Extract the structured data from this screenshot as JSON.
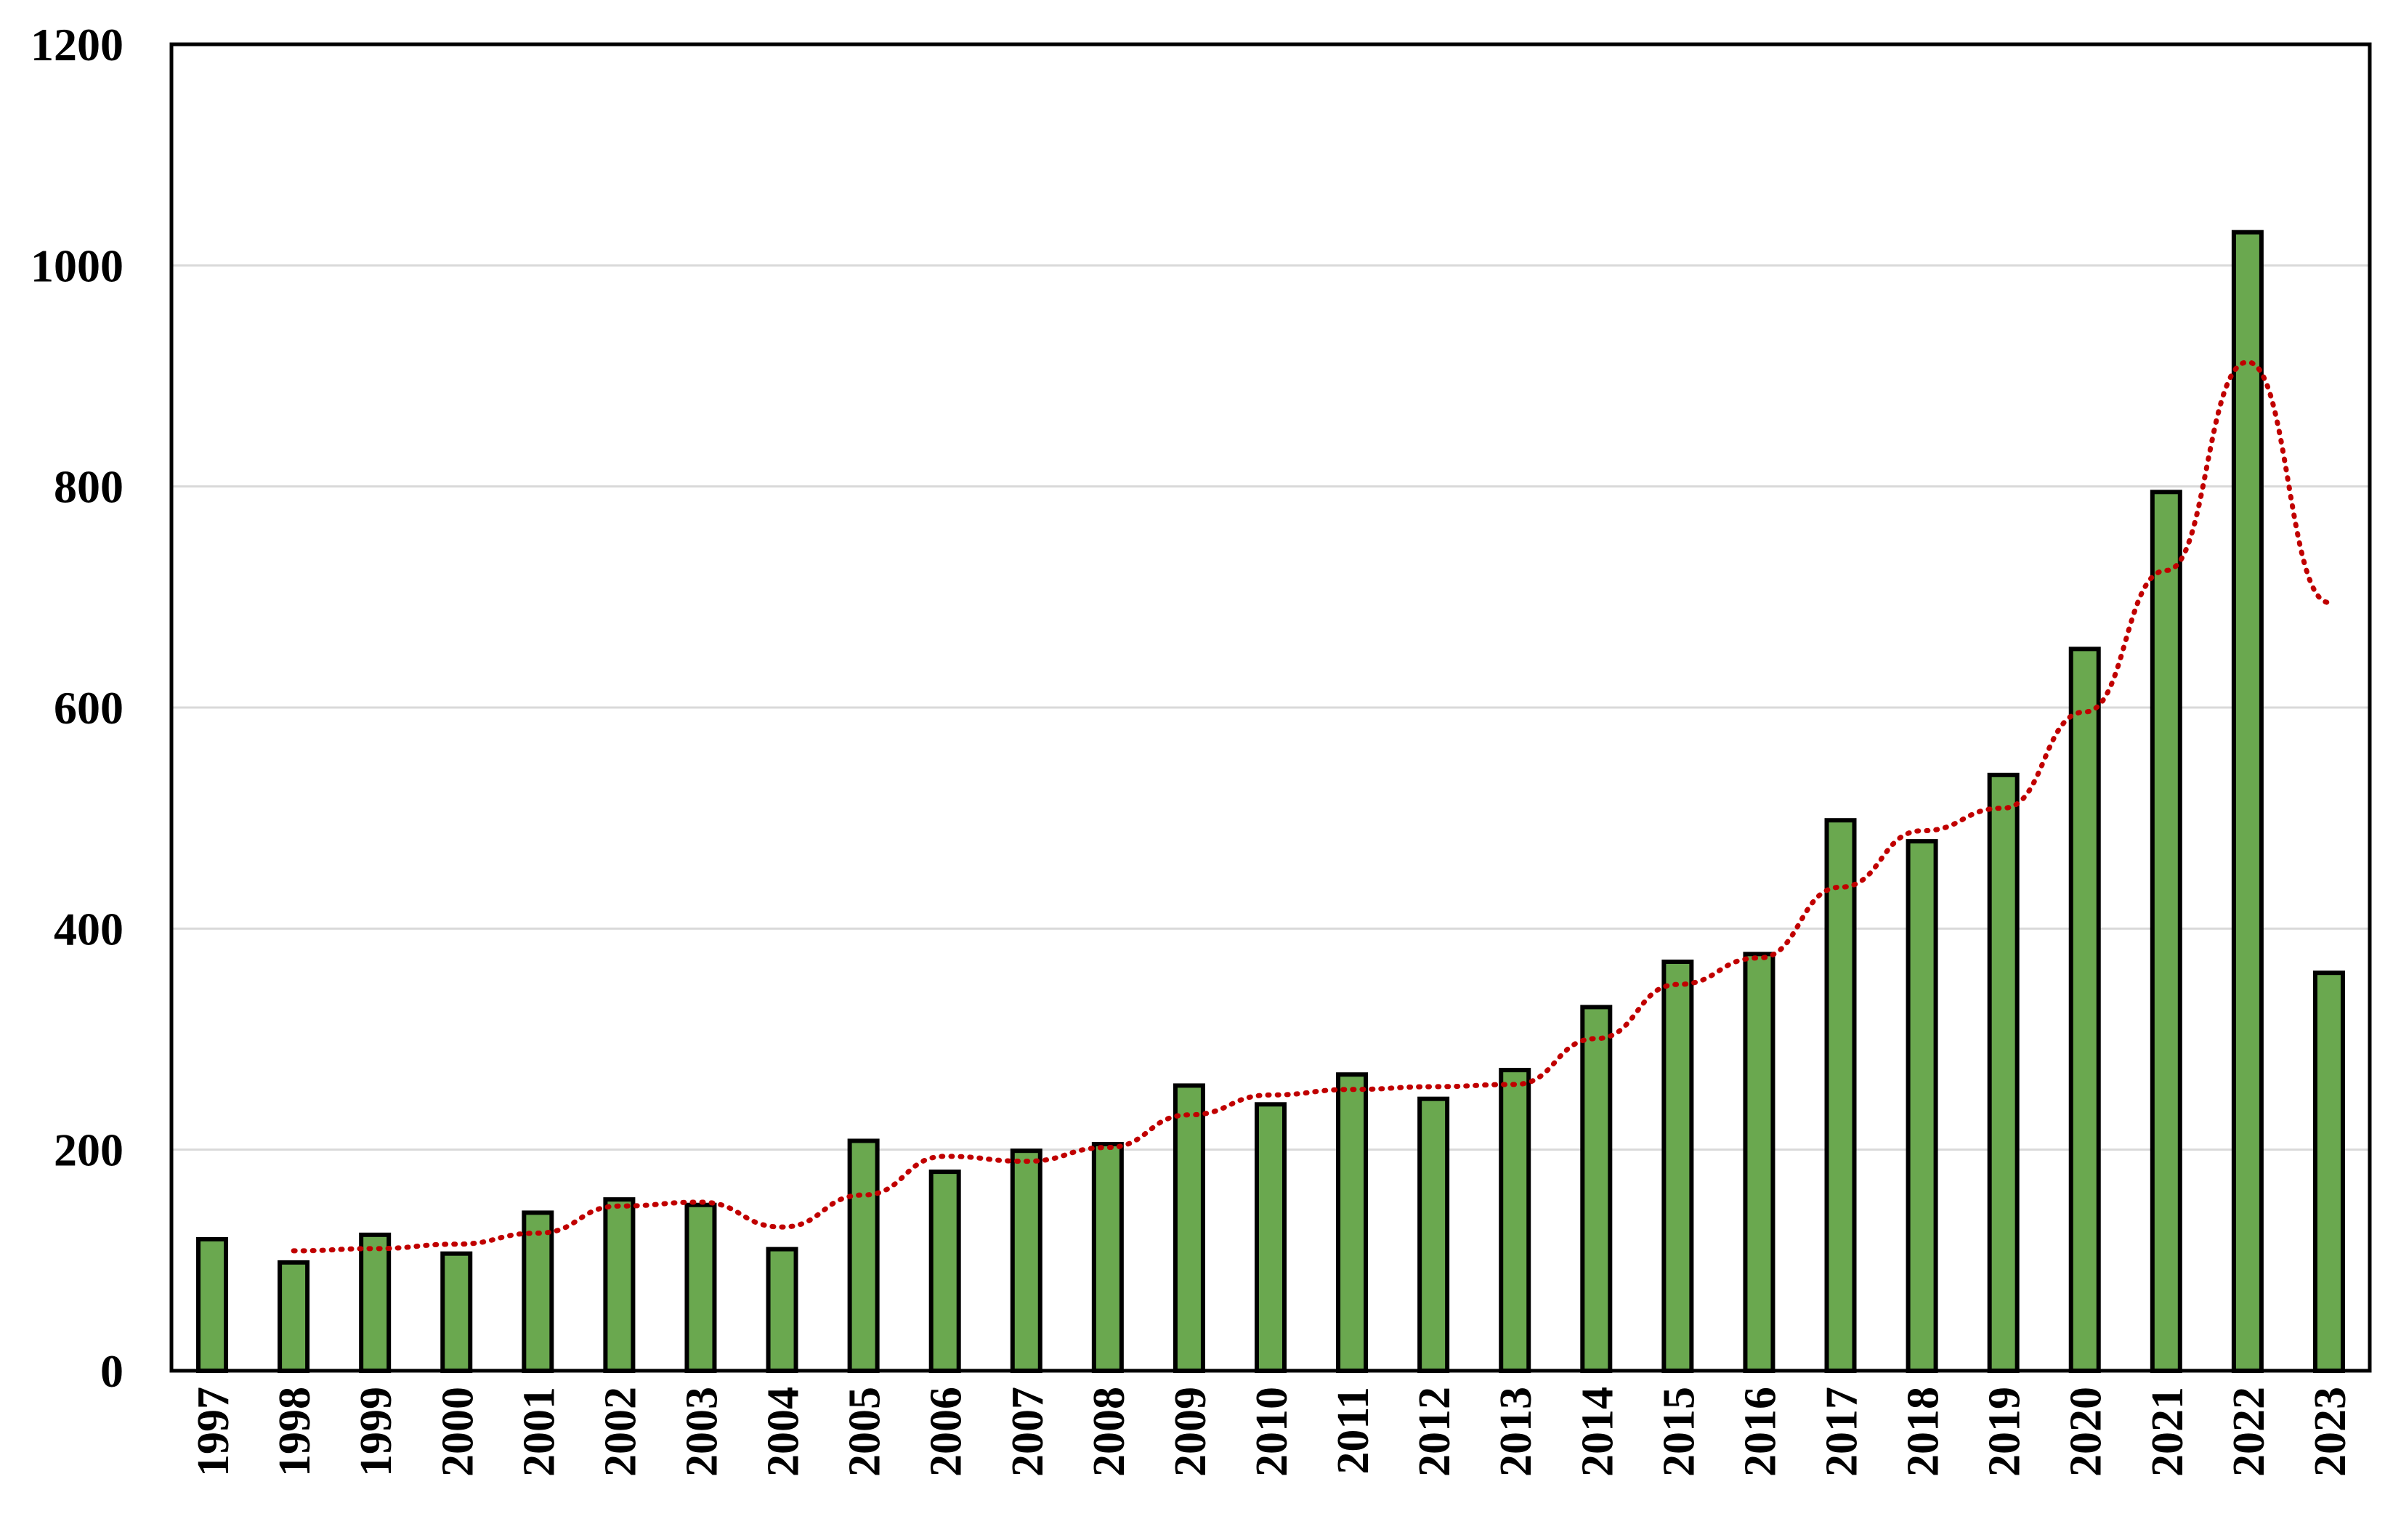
{
  "chart_data": {
    "type": "bar",
    "title": "",
    "xlabel": "",
    "ylabel": "",
    "ylim": [
      0,
      1200
    ],
    "yticks": [
      0,
      200,
      400,
      600,
      800,
      1000,
      1200
    ],
    "grid": "horizontal",
    "legend": "none",
    "categories": [
      "1997",
      "1998",
      "1999",
      "2000",
      "2001",
      "2002",
      "2003",
      "2004",
      "2005",
      "2006",
      "2007",
      "2008",
      "2009",
      "2010",
      "2011",
      "2012",
      "2013",
      "2014",
      "2015",
      "2016",
      "2017",
      "2018",
      "2019",
      "2020",
      "2021",
      "2022",
      "2023"
    ],
    "series": [
      {
        "type": "bar",
        "values": [
          119,
          98,
          123,
          106,
          143,
          155,
          150,
          110,
          208,
          180,
          199,
          205,
          258,
          241,
          268,
          246,
          272,
          329,
          370,
          377,
          498,
          479,
          539,
          653,
          795,
          1030,
          360
        ],
        "color": "#6aa84f",
        "edge_color": "#000000"
      },
      {
        "type": "line",
        "style": "dotted",
        "trend": "2-period moving average",
        "values": [
          null,
          108.5,
          110.5,
          114.5,
          124.5,
          149,
          152.5,
          130,
          159,
          194,
          189.5,
          202,
          231.5,
          249.5,
          254.5,
          257,
          259,
          300.5,
          349.5,
          373.5,
          437.5,
          488.5,
          509,
          596,
          724,
          912.5,
          695
        ],
        "color": "#c00000"
      }
    ]
  }
}
